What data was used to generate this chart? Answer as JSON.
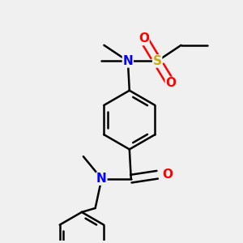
{
  "bg_color": "#f0f0f0",
  "atom_colors": {
    "C": "#000000",
    "N": "#0000ff",
    "O": "#ff0000",
    "S": "#ccaa00"
  },
  "bond_color": "#000000",
  "bond_width": 1.8,
  "font_size_N": 11,
  "font_size_O": 11,
  "font_size_S": 11,
  "font_size_methyl": 10
}
